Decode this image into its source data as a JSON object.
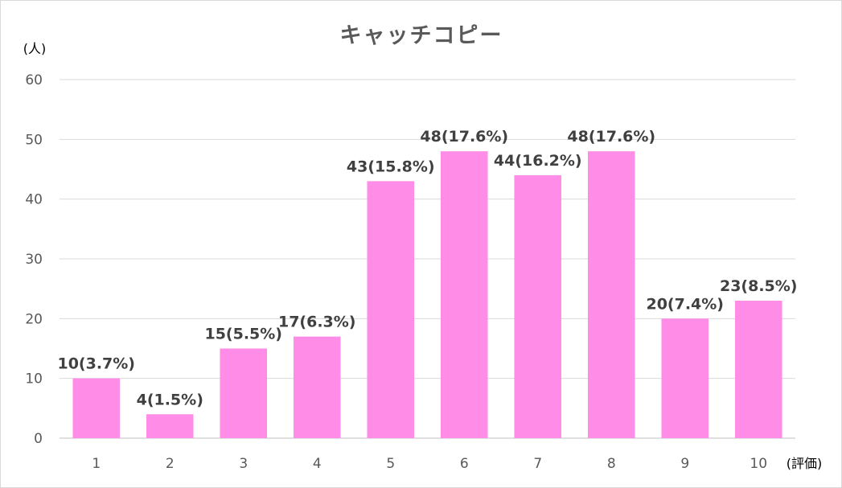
{
  "chart_data": {
    "type": "bar",
    "title": "キャッチコピー",
    "ylabel": "(人)",
    "xlabel": "(評価)",
    "categories": [
      "1",
      "2",
      "3",
      "4",
      "5",
      "6",
      "7",
      "8",
      "9",
      "10"
    ],
    "values": [
      10,
      4,
      15,
      17,
      43,
      48,
      44,
      48,
      20,
      23
    ],
    "data_labels": [
      "10(3.7%)",
      "4(1.5%)",
      "15(5.5%)",
      "17(6.3%)",
      "43(15.8%)",
      "48(17.6%)",
      "44(16.2%)",
      "48(17.6%)",
      "20(7.4%)",
      "23(8.5%)"
    ],
    "y_ticks": [
      "0",
      "10",
      "20",
      "30",
      "40",
      "50",
      "60"
    ],
    "ylim": [
      0,
      60
    ],
    "grid": true,
    "legend": "none",
    "bar_color": "#FF8CE6"
  }
}
